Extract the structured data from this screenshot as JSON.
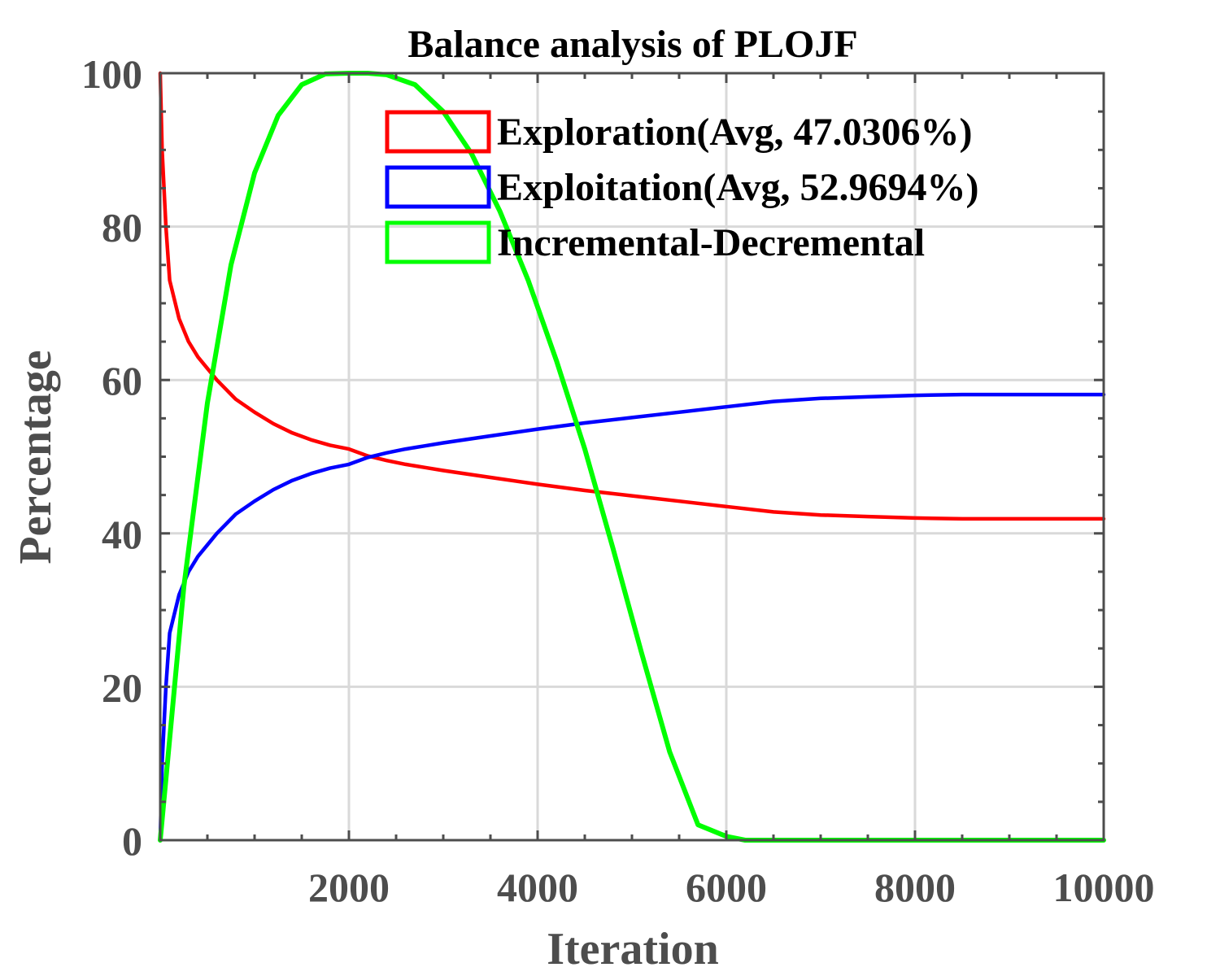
{
  "chart_data": {
    "type": "line",
    "title": "Balance analysis of PLOJF",
    "xlabel": "Iteration",
    "ylabel": "Percentage",
    "xlim": [
      0,
      10000
    ],
    "ylim": [
      0,
      100
    ],
    "xticks": [
      2000,
      4000,
      6000,
      8000,
      10000
    ],
    "yticks": [
      0,
      20,
      40,
      60,
      80,
      100
    ],
    "grid": true,
    "legend_position": "top-center",
    "series": [
      {
        "name": "Exploration(Avg, 47.0306%)",
        "color": "#ff0000",
        "x": [
          0,
          20,
          60,
          100,
          200,
          300,
          400,
          600,
          800,
          1000,
          1200,
          1400,
          1600,
          1800,
          2000,
          2200,
          2400,
          2600,
          2800,
          3000,
          3500,
          4000,
          4500,
          5000,
          5500,
          6000,
          6500,
          7000,
          7500,
          8000,
          8500,
          9000,
          9500,
          10000
        ],
        "y": [
          100,
          90,
          80,
          73,
          68,
          65,
          63,
          60,
          57.5,
          55.8,
          54.3,
          53.1,
          52.2,
          51.5,
          51,
          50.1,
          49.5,
          49,
          48.6,
          48.2,
          47.3,
          46.4,
          45.6,
          44.9,
          44.2,
          43.5,
          42.8,
          42.4,
          42.2,
          42,
          41.9,
          41.9,
          41.9,
          41.9
        ]
      },
      {
        "name": "Exploitation(Avg, 52.9694%)",
        "color": "#0000ff",
        "x": [
          0,
          20,
          60,
          100,
          200,
          300,
          400,
          600,
          800,
          1000,
          1200,
          1400,
          1600,
          1800,
          2000,
          2200,
          2400,
          2600,
          2800,
          3000,
          3500,
          4000,
          4500,
          5000,
          5500,
          6000,
          6500,
          7000,
          7500,
          8000,
          8500,
          9000,
          9500,
          10000
        ],
        "y": [
          0,
          10,
          20,
          27,
          32,
          35,
          37,
          40,
          42.5,
          44.2,
          45.7,
          46.9,
          47.8,
          48.5,
          49,
          49.9,
          50.5,
          51,
          51.4,
          51.8,
          52.7,
          53.6,
          54.4,
          55.1,
          55.8,
          56.5,
          57.2,
          57.6,
          57.8,
          58,
          58.1,
          58.1,
          58.1,
          58.1
        ]
      },
      {
        "name": "Incremental-Decremental",
        "color": "#00ff00",
        "x": [
          0,
          250,
          500,
          750,
          1000,
          1250,
          1500,
          1750,
          2000,
          2200,
          2400,
          2700,
          3000,
          3300,
          3600,
          3900,
          4200,
          4500,
          4800,
          5100,
          5400,
          5700,
          6000,
          6200,
          6225,
          7000,
          8000,
          9000,
          10000
        ],
        "y": [
          0,
          33,
          57,
          75,
          87,
          94.5,
          98.5,
          99.9,
          100,
          100,
          99.8,
          98.5,
          95,
          89.5,
          82,
          73,
          62.5,
          51,
          38,
          24.5,
          11.5,
          2,
          0.5,
          0,
          0,
          0,
          0,
          0,
          0
        ]
      }
    ]
  }
}
